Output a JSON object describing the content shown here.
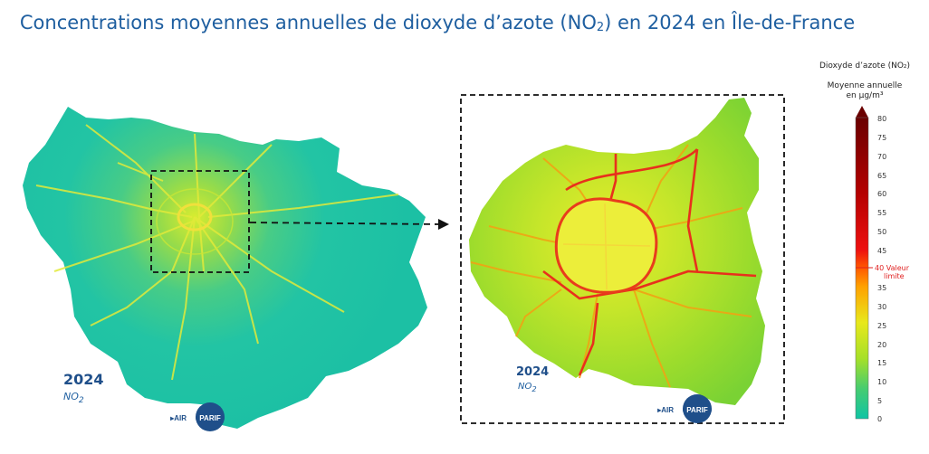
{
  "title": {
    "text_before": "Concentrations moyennes annuelles de dioxyde d’azote (NO",
    "subscript": "2",
    "text_after": ") en 2024 en Île-de-France"
  },
  "left_map": {
    "year": "2024",
    "species_prefix": "NO",
    "species_sub": "2"
  },
  "right_map": {
    "year": "2024",
    "species_prefix": "NO",
    "species_sub": "2"
  },
  "logo": {
    "prefix": "▸AIR",
    "badge": "PARIF",
    "logo_name": "airparif-logo"
  },
  "legend": {
    "title": "Dioxyde d’azote (NO₂)",
    "subtitle_line1": "Moyenne annuelle",
    "subtitle_line2": "en µg/m³",
    "ticks": [
      "80",
      "75",
      "70",
      "65",
      "60",
      "55",
      "50",
      "45",
      "40 Valeur",
      "35",
      "30",
      "25",
      "20",
      "15",
      "10",
      "5",
      "0"
    ],
    "limit_label_line1": "40 Valeur",
    "limit_label_line2": "limite",
    "limit_value": 40,
    "scale_min": 0,
    "scale_max": 80,
    "colors": {
      "low": "#10c8a0",
      "mid": "#c8e820",
      "limit": "#ff6000",
      "high": "#6a0000"
    }
  },
  "colors": {
    "title": "#1f5fa0",
    "region_base": "#22c4a4",
    "paris_mid": "#b6e020",
    "roads_hot": "#e8341c"
  }
}
